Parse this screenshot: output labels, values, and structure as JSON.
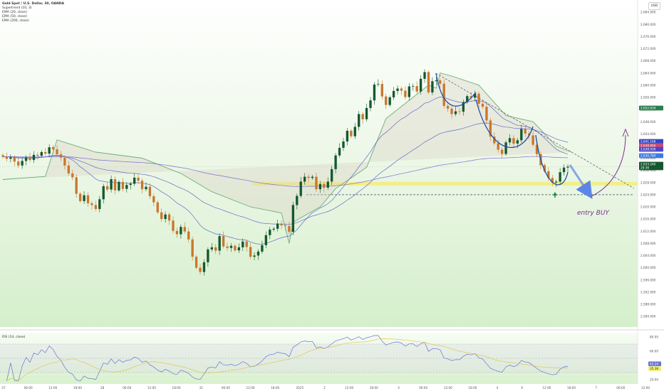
{
  "legend": [
    "Gold Spot / U.S. Dollar, 30, OANDA",
    "Supertrend (10, 3)",
    "EMA (20, close)",
    "EMA (50, close)",
    "EMA (200, close)"
  ],
  "currency_button": "USD",
  "rsi_legend": "RSI (14, close)",
  "annotation": "entry BUY",
  "colors": {
    "up": "#14582e",
    "down": "#c8772d",
    "supertrend_up": "#57a96a",
    "supertrend_down": "#d45050",
    "ema": "#4a55c8",
    "ema200": "#6b5bd6",
    "support_zone": "#f2ee72",
    "annotation": "#7b2f91",
    "rsi": "#6a73d4"
  },
  "price_badges": [
    {
      "value": "2,652.634",
      "bg": "#2e7d4f"
    },
    {
      "value": "2,641.168",
      "bg": "#3346c8"
    },
    {
      "value": "2,638.856",
      "bg": "#c94c72"
    },
    {
      "value": "2,638.039",
      "bg": "#5043c9"
    },
    {
      "value": "2,636.784",
      "bg": "#3d7adf"
    },
    {
      "value": "2,633.240",
      "bg": "#14582e"
    },
    {
      "value": "28:36",
      "bg": "#14582e"
    }
  ],
  "rsi_badges": [
    {
      "value": "42.24",
      "bg": "#6a73d4"
    },
    {
      "value": "35.38",
      "bg": "#f2ee72"
    }
  ],
  "chart_data": {
    "type": "candlestick",
    "timeframe": "30",
    "y_ticks": [
      "2,684.000",
      "2,680.000",
      "2,676.000",
      "2,672.000",
      "2,668.000",
      "2,664.000",
      "2,660.000",
      "2,656.000",
      "2,652.000",
      "2,648.000",
      "2,644.000",
      "2,640.000",
      "2,636.000",
      "2,632.000",
      "2,628.000",
      "2,624.000",
      "2,620.000",
      "2,616.000",
      "2,612.000",
      "2,608.000",
      "2,604.000",
      "2,600.000",
      "2,596.000",
      "2,592.000",
      "2,588.000",
      "2,584.000"
    ],
    "x_ticks": [
      "27",
      "06:00",
      "12:00",
      "18:00",
      "28",
      "06:00",
      "12:00",
      "18:00",
      "31",
      "06:00",
      "12:00",
      "18:00",
      "2025",
      "2",
      "12:00",
      "18:00",
      "3",
      "06:00",
      "12:00",
      "18:00",
      "4",
      "6",
      "12:00",
      "18:00",
      "7",
      "06:00",
      "12:00"
    ],
    "ylim": [
      2580.5,
      2688
    ],
    "candles_close": [
      2636.5,
      2635.8,
      2636.3,
      2634.9,
      2633.6,
      2635.1,
      2636.2,
      2635.4,
      2637.1,
      2636.8,
      2638.0,
      2637.5,
      2639.6,
      2638.9,
      2637.3,
      2636.2,
      2633.6,
      2631.0,
      2629.7,
      2624.3,
      2621.9,
      2623.8,
      2621.2,
      2620.6,
      2619.3,
      2622.5,
      2626.8,
      2625.7,
      2629.1,
      2625.4,
      2628.2,
      2625.9,
      2627.2,
      2627.6,
      2629.6,
      2628.6,
      2625.8,
      2626.6,
      2623.5,
      2621.5,
      2618.2,
      2616.0,
      2617.5,
      2615.5,
      2612.1,
      2611.0,
      2613.4,
      2611.9,
      2609.3,
      2603.6,
      2600.0,
      2598.6,
      2601.8,
      2606.0,
      2606.7,
      2605.6,
      2610.4,
      2607.0,
      2606.5,
      2607.2,
      2605.7,
      2606.7,
      2608.6,
      2606.8,
      2603.6,
      2604.0,
      2605.3,
      2607.4,
      2610.7,
      2612.5,
      2612.8,
      2614.5,
      2613.9,
      2613.7,
      2611.8,
      2620.6,
      2623.6,
      2628.3,
      2629.9,
      2629.5,
      2629.9,
      2625.8,
      2627.5,
      2626.3,
      2628.3,
      2632.4,
      2636.9,
      2639.4,
      2641.5,
      2645.0,
      2643.2,
      2646.3,
      2650.5,
      2648.8,
      2652.5,
      2655.0,
      2660.2,
      2660.4,
      2656.3,
      2653.5,
      2656.0,
      2658.1,
      2658.9,
      2658.2,
      2656.1,
      2659.6,
      2659.7,
      2657.9,
      2662.1,
      2664.3,
      2657.6,
      2661.3,
      2661.6,
      2660.5,
      2653.2,
      2652.3,
      2650.5,
      2651.4,
      2651.3,
      2654.4,
      2656.4,
      2655.9,
      2657.2,
      2653.9,
      2652.9,
      2648.4,
      2643.1,
      2640.9,
      2638.8,
      2637.4,
      2641.2,
      2642.6,
      2640.8,
      2641.9,
      2645.6,
      2644.1,
      2643.5,
      2640.4,
      2637.3,
      2633.7,
      2631.7,
      2629.5,
      2628.0,
      2628.3,
      2631.4,
      2632.9,
      2633.2
    ],
    "supertrend_band": [
      [
        0,
        2629
      ],
      [
        11,
        2630
      ],
      [
        14,
        2642
      ],
      [
        24,
        2638
      ],
      [
        36,
        2636
      ],
      [
        46,
        2631
      ],
      [
        54,
        2625
      ],
      [
        64,
        2620
      ],
      [
        72,
        2618
      ],
      [
        74,
        2608
      ],
      [
        75,
        2615
      ],
      [
        82,
        2620
      ],
      [
        86,
        2626
      ],
      [
        94,
        2633
      ],
      [
        99,
        2649
      ],
      [
        104,
        2654
      ],
      [
        110,
        2660
      ],
      [
        112,
        2659
      ],
      [
        113,
        2664
      ],
      [
        116,
        2663
      ],
      [
        123,
        2660
      ],
      [
        130,
        2650
      ],
      [
        137,
        2648
      ],
      [
        143,
        2640
      ],
      [
        147,
        2638
      ]
    ],
    "ema20_last": 2636.8,
    "ema50_last": 2638.0,
    "ema200_last": 2641.2,
    "support_zone": [
      2627.0,
      2628.2
    ],
    "support_line": 2624.0,
    "rsi": {
      "title": "RSI (14, close)",
      "y_ticks": [
        "80.00",
        "60.00",
        "20.00"
      ],
      "upper": 70,
      "lower": 30,
      "last": 42.24,
      "ma_last": 35.38
    }
  }
}
